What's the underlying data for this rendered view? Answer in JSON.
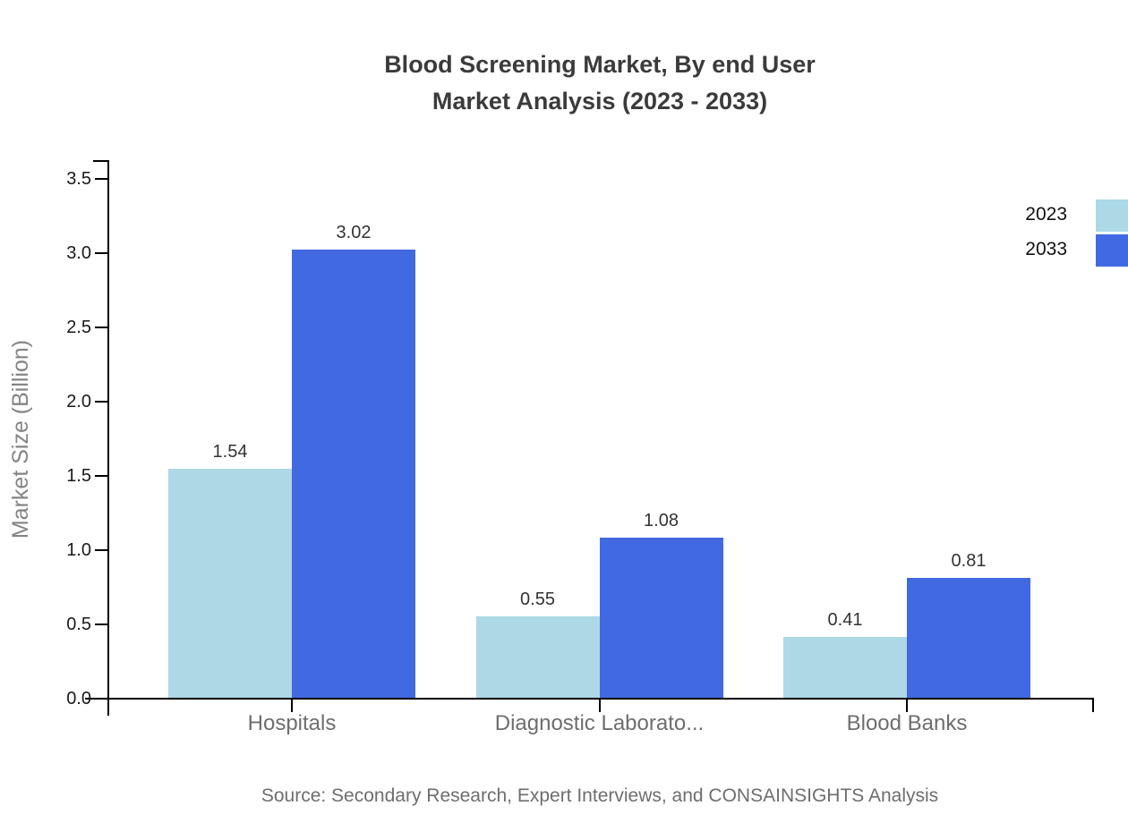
{
  "title": {
    "line1": "Blood Screening Market, By end User",
    "line2": "Market Analysis (2023 - 2033)"
  },
  "chart_data": {
    "type": "bar",
    "categories": [
      "Hospitals",
      "Diagnostic Laborato...",
      "Blood Banks"
    ],
    "series": [
      {
        "name": "2023",
        "color": "#add8e6",
        "values": [
          1.54,
          0.55,
          0.41
        ]
      },
      {
        "name": "2033",
        "color": "#4169e1",
        "values": [
          3.02,
          1.08,
          0.81
        ]
      }
    ],
    "xlabel": "",
    "ylabel": "Market Size (Billion)",
    "ylim": [
      0,
      3.5
    ],
    "ytick_step": 0.5,
    "grid": false,
    "legend_position": "top-right",
    "value_labels": true
  },
  "source": "Source: Secondary Research, Expert Interviews, and CONSAINSIGHTS Analysis",
  "colors": {
    "series_2023": "#add8e6",
    "series_2033": "#4169e1",
    "axis": "#000000",
    "title_text": "#3b3b3b",
    "value_label_text": "#333333",
    "category_text": "#6e6e6e",
    "axis_title_text": "#848484",
    "tick_label_text": "#1a1a1a",
    "source_text": "#6e6e6e"
  }
}
